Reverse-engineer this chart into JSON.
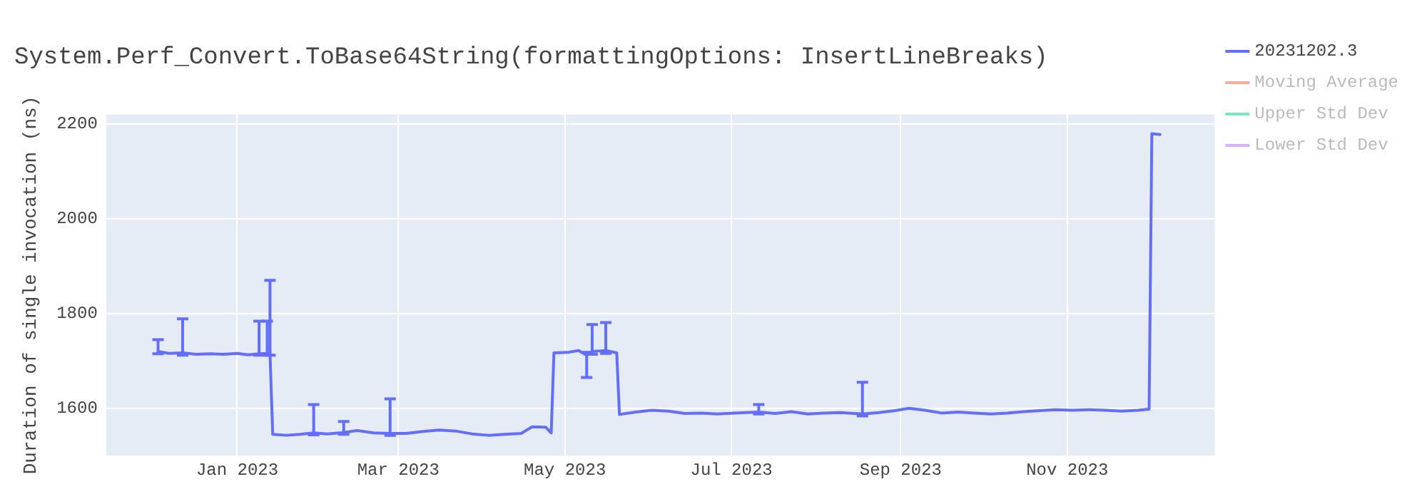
{
  "chart_data": {
    "type": "line",
    "title": "System.Perf_Convert.ToBase64String(formattingOptions: InsertLineBreaks)",
    "ylabel": "Duration of single invocation (ns)",
    "x": [
      "2022-12-03",
      "2022-12-07",
      "2022-12-12",
      "2022-12-17",
      "2022-12-22",
      "2022-12-27",
      "2023-01-01",
      "2023-01-05",
      "2023-01-09",
      "2023-01-12",
      "2023-01-13",
      "2023-01-14",
      "2023-01-19",
      "2023-01-24",
      "2023-01-29",
      "2023-02-03",
      "2023-02-09",
      "2023-02-14",
      "2023-02-20",
      "2023-02-26",
      "2023-03-04",
      "2023-03-10",
      "2023-03-16",
      "2023-03-22",
      "2023-03-28",
      "2023-04-03",
      "2023-04-09",
      "2023-04-15",
      "2023-04-19",
      "2023-04-24",
      "2023-04-26",
      "2023-04-27",
      "2023-05-02",
      "2023-05-06",
      "2023-05-09",
      "2023-05-11",
      "2023-05-16",
      "2023-05-20",
      "2023-05-21",
      "2023-05-27",
      "2023-06-02",
      "2023-06-08",
      "2023-06-14",
      "2023-06-20",
      "2023-06-26",
      "2023-07-02",
      "2023-07-11",
      "2023-07-17",
      "2023-07-23",
      "2023-07-29",
      "2023-08-04",
      "2023-08-10",
      "2023-08-18",
      "2023-08-24",
      "2023-08-30",
      "2023-09-04",
      "2023-09-10",
      "2023-09-16",
      "2023-09-22",
      "2023-09-28",
      "2023-10-04",
      "2023-10-10",
      "2023-10-16",
      "2023-10-22",
      "2023-10-28",
      "2023-11-03",
      "2023-11-09",
      "2023-11-15",
      "2023-11-21",
      "2023-11-27",
      "2023-12-01",
      "2023-12-02",
      "2023-12-05"
    ],
    "series": [
      {
        "name": "20231202.3",
        "color": "#636efa",
        "values": [
          1720,
          1716,
          1717,
          1714,
          1715,
          1714,
          1716,
          1713,
          1715,
          1716,
          1717,
          1545,
          1543,
          1545,
          1548,
          1546,
          1549,
          1553,
          1548,
          1547,
          1547,
          1551,
          1554,
          1552,
          1546,
          1543,
          1545,
          1547,
          1561,
          1560,
          1548,
          1717,
          1718,
          1722,
          1712,
          1720,
          1722,
          1717,
          1587,
          1592,
          1596,
          1594,
          1589,
          1590,
          1588,
          1590,
          1592,
          1589,
          1593,
          1588,
          1590,
          1591,
          1588,
          1591,
          1595,
          1600,
          1596,
          1590,
          1592,
          1590,
          1588,
          1590,
          1593,
          1595,
          1597,
          1596,
          1597,
          1596,
          1594,
          1596,
          1598,
          2180,
          2178
        ],
        "errors": [
          [
            1715,
            1745
          ],
          null,
          [
            1712,
            1789
          ],
          null,
          null,
          null,
          null,
          null,
          [
            1712,
            1784
          ],
          [
            1712,
            1784
          ],
          [
            1712,
            1870
          ],
          null,
          null,
          null,
          [
            1544,
            1608
          ],
          null,
          [
            1545,
            1572
          ],
          null,
          null,
          [
            1543,
            1620
          ],
          null,
          null,
          null,
          null,
          null,
          null,
          null,
          null,
          null,
          null,
          null,
          null,
          null,
          null,
          [
            1665,
            1718
          ],
          [
            1714,
            1777
          ],
          [
            1716,
            1781
          ],
          null,
          null,
          null,
          null,
          null,
          null,
          null,
          null,
          null,
          [
            1588,
            1608
          ],
          null,
          null,
          null,
          null,
          null,
          [
            1584,
            1655
          ],
          null,
          null,
          null,
          null,
          null,
          null,
          null,
          null,
          null,
          null,
          null,
          null,
          null,
          null,
          null,
          null,
          null,
          null,
          null,
          null
        ]
      },
      {
        "name": "Moving Average",
        "color": "#ef553b",
        "values": [
          null,
          null,
          null,
          null,
          null,
          null,
          null,
          null,
          null,
          null,
          null,
          null,
          null,
          null,
          null,
          null,
          null,
          null,
          null,
          null,
          null,
          null,
          null,
          null,
          null,
          null,
          null,
          null,
          null,
          null,
          null,
          null,
          null,
          null,
          null,
          null,
          null,
          null,
          null,
          null,
          null,
          null,
          null,
          null,
          null,
          null,
          null,
          null,
          null,
          null,
          null,
          null,
          null,
          null,
          null,
          null,
          null,
          null,
          null,
          null,
          null,
          null,
          null,
          null,
          null,
          null,
          null,
          null,
          null,
          null,
          null,
          null,
          null
        ]
      },
      {
        "name": "Upper Std Dev",
        "color": "#00cc96",
        "values": [
          null,
          null,
          null,
          null,
          null,
          null,
          null,
          null,
          null,
          null,
          null,
          null,
          null,
          null,
          null,
          null,
          null,
          null,
          null,
          null,
          null,
          null,
          null,
          null,
          null,
          null,
          null,
          null,
          null,
          null,
          null,
          null,
          null,
          null,
          null,
          null,
          null,
          null,
          null,
          null,
          null,
          null,
          null,
          null,
          null,
          null,
          null,
          null,
          null,
          null,
          null,
          null,
          null,
          null,
          null,
          null,
          null,
          null,
          null,
          null,
          null,
          null,
          null,
          null,
          null,
          null,
          null,
          null,
          null,
          null,
          null,
          null,
          null
        ]
      },
      {
        "name": "Lower Std Dev",
        "color": "#ab63fa",
        "values": [
          null,
          null,
          null,
          null,
          null,
          null,
          null,
          null,
          null,
          null,
          null,
          null,
          null,
          null,
          null,
          null,
          null,
          null,
          null,
          null,
          null,
          null,
          null,
          null,
          null,
          null,
          null,
          null,
          null,
          null,
          null,
          null,
          null,
          null,
          null,
          null,
          null,
          null,
          null,
          null,
          null,
          null,
          null,
          null,
          null,
          null,
          null,
          null,
          null,
          null,
          null,
          null,
          null,
          null,
          null,
          null,
          null,
          null,
          null,
          null,
          null,
          null,
          null,
          null,
          null,
          null,
          null,
          null,
          null,
          null,
          null,
          null,
          null
        ]
      }
    ],
    "xlim": [
      "2022-11-14",
      "2023-12-25"
    ],
    "xticks": [
      {
        "value": "2023-01-01",
        "label": "Jan 2023"
      },
      {
        "value": "2023-03-01",
        "label": "Mar 2023"
      },
      {
        "value": "2023-05-01",
        "label": "May 2023"
      },
      {
        "value": "2023-07-01",
        "label": "Jul 2023"
      },
      {
        "value": "2023-09-01",
        "label": "Sep 2023"
      },
      {
        "value": "2023-11-01",
        "label": "Nov 2023"
      }
    ],
    "ylim": [
      1500,
      2220
    ],
    "yticks": [
      1600,
      1800,
      2000,
      2200
    ],
    "grid": true,
    "legend": "top right",
    "marker": "none",
    "line_style": "solid"
  }
}
